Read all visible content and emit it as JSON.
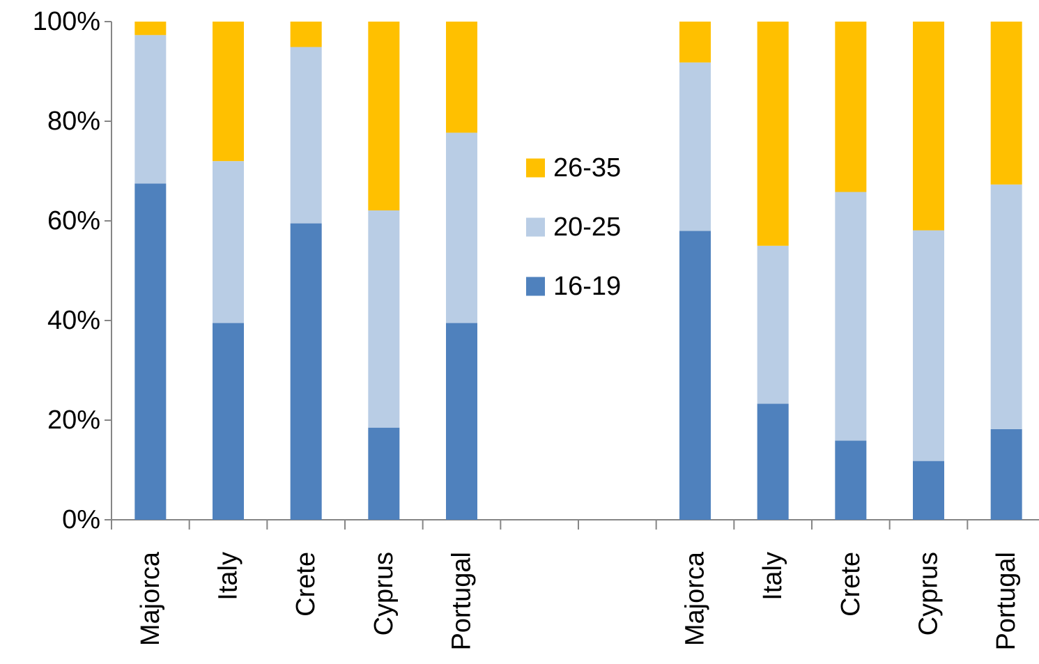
{
  "chart_data": {
    "type": "bar",
    "stacked": true,
    "normalized": true,
    "title": "",
    "xlabel": "",
    "ylabel": "",
    "ylim": [
      0,
      100
    ],
    "y_ticks": [
      "0%",
      "20%",
      "40%",
      "60%",
      "80%",
      "100%"
    ],
    "grid": false,
    "legend_position": "center",
    "categories": [
      "Majorca",
      "Italy",
      "Crete",
      "Cyprus",
      "Portugal",
      "",
      "",
      "Majorca",
      "Italy",
      "Crete",
      "Cyprus",
      "Portugal"
    ],
    "series": [
      {
        "name": "16-19",
        "color": "#4f81bd",
        "values": [
          67.5,
          39.5,
          59.5,
          18.5,
          39.5,
          null,
          null,
          58,
          23.3,
          15.9,
          11.8,
          18.2
        ]
      },
      {
        "name": "20-25",
        "color": "#b9cde5",
        "values": [
          29.8,
          32.5,
          35.4,
          43.6,
          38.2,
          null,
          null,
          33.8,
          31.7,
          49.9,
          46.3,
          49.1
        ]
      },
      {
        "name": "26-35",
        "color": "#ffc000",
        "values": [
          2.7,
          28,
          5.1,
          37.9,
          22.3,
          null,
          null,
          8.2,
          45,
          34.2,
          41.9,
          32.7
        ]
      }
    ],
    "legend": [
      {
        "name": "26-35",
        "color": "#ffc000"
      },
      {
        "name": "20-25",
        "color": "#b9cde5"
      },
      {
        "name": "16-19",
        "color": "#4f81bd"
      }
    ]
  }
}
